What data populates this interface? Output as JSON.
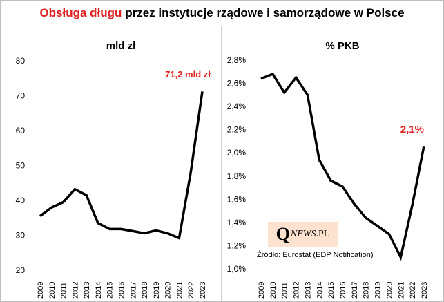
{
  "header": {
    "title_red": "Obsługa długu",
    "title_rest": "przez instytucje  rządowe  i samorządowe  w Polsce"
  },
  "chart_data": [
    {
      "type": "line",
      "title": "mld zł",
      "x": [
        "2009",
        "2010",
        "2011",
        "2012",
        "2013",
        "2014",
        "2015",
        "2016",
        "2017",
        "2018",
        "2019",
        "2020",
        "2021",
        "2022",
        "2023"
      ],
      "values": [
        35.5,
        38.0,
        39.5,
        43.2,
        41.5,
        33.5,
        31.8,
        31.8,
        31.2,
        30.6,
        31.4,
        30.6,
        29.2,
        48.0,
        71.2
      ],
      "ylim": [
        20,
        80
      ],
      "yticks": [
        20,
        30,
        40,
        50,
        60,
        70,
        80
      ],
      "ytick_labels": [
        "20",
        "30",
        "40",
        "50",
        "60",
        "70",
        "80"
      ],
      "annotation": "71,2 mld zł",
      "color": "#000000",
      "annotation_color": "#e02020"
    },
    {
      "type": "line",
      "title": "% PKB",
      "x": [
        "2009",
        "2010",
        "2011",
        "2012",
        "2013",
        "2014",
        "2015",
        "2016",
        "2017",
        "2018",
        "2019",
        "2020",
        "2021",
        "2022",
        "2023"
      ],
      "values": [
        2.64,
        2.68,
        2.52,
        2.65,
        2.5,
        1.94,
        1.76,
        1.71,
        1.56,
        1.44,
        1.37,
        1.3,
        1.1,
        1.55,
        2.06
      ],
      "ylim": [
        1.0,
        2.8
      ],
      "yticks": [
        1.0,
        1.2,
        1.4,
        1.6,
        1.8,
        2.0,
        2.2,
        2.4,
        2.6,
        2.8
      ],
      "ytick_labels": [
        "1,0%",
        "1,2%",
        "1,4%",
        "1,6%",
        "1,8%",
        "2,0%",
        "2,2%",
        "2,4%",
        "2,6%",
        "2,8%"
      ],
      "annotation": "2,1%",
      "color": "#000000",
      "annotation_color": "#e02020"
    }
  ],
  "logo": {
    "q": "Q",
    "news": "NEWS",
    "pl": ".PL"
  },
  "source": "Źródło: Eurostat (EDP Notification)"
}
